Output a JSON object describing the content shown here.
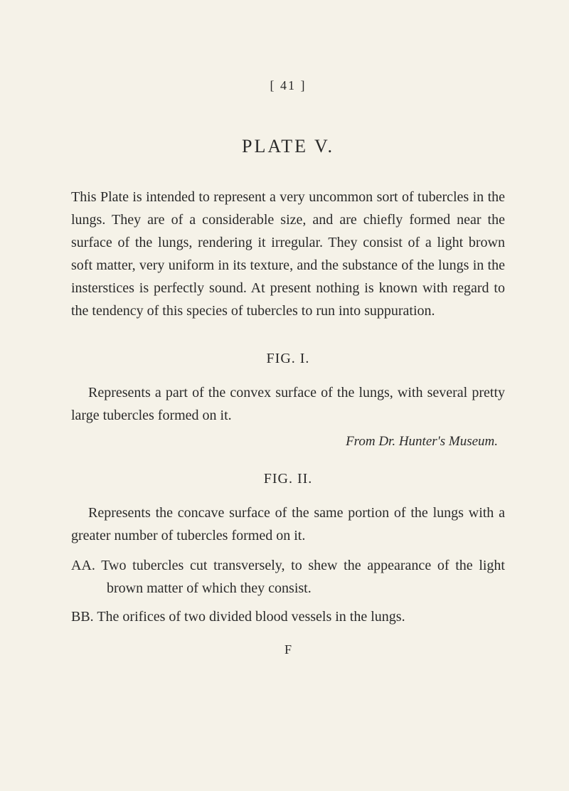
{
  "page_number": "[ 41 ]",
  "plate_title": "PLATE V.",
  "intro_paragraph": "This Plate is intended to represent a very uncommon sort of tubercles in the lungs. They are of a considerable size, and are chiefly formed near the surface of the lungs, rendering it irregular. They consist of a light brown soft matter, very uniform in its texture, and the substance of the lungs in the insterstices is perfectly sound. At present nothing is known with regard to the tendency of this species of tubercles to run into suppuration.",
  "fig1": {
    "heading": "FIG. I.",
    "text": "Represents a part of the convex surface of the lungs, with several pretty large tubercles formed on it.",
    "attribution": "From Dr. Hunter's Museum."
  },
  "fig2": {
    "heading": "FIG. II.",
    "text": "Represents the concave surface of the same portion of the lungs with a greater number of tubercles formed on it.",
    "item_aa": "AA. Two tubercles cut transversely, to shew the appearance of the light brown matter of which they consist.",
    "item_bb": "BB. The orifices of two divided blood vessels in the lungs."
  },
  "footer_mark": "F",
  "colors": {
    "background": "#f5f2e8",
    "text": "#2a2a2a"
  },
  "typography": {
    "body_fontsize": 20,
    "title_fontsize": 26,
    "line_height": 1.6
  }
}
